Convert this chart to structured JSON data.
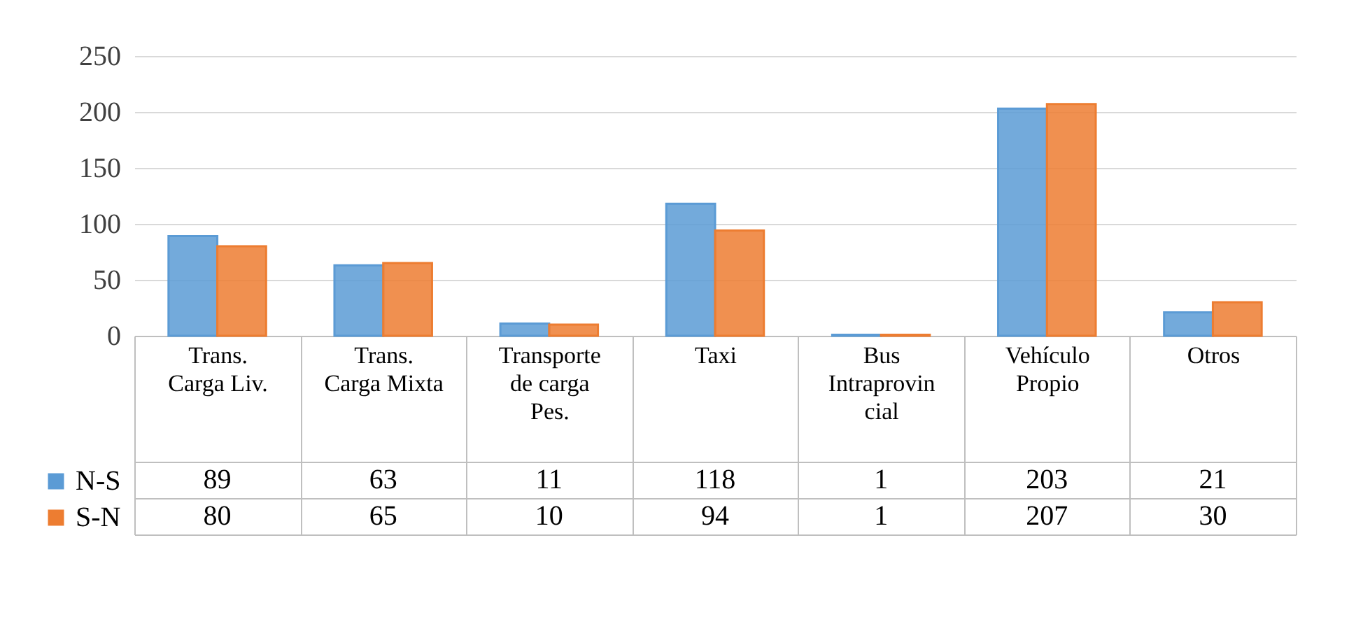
{
  "chart_data": {
    "type": "bar",
    "categories": [
      "Trans. Carga Liv.",
      "Trans. Carga Mixta",
      "Transporte de carga Pes.",
      "Taxi",
      "Bus Intraprovincial",
      "Vehículo Propio",
      "Otros"
    ],
    "series": [
      {
        "name": "N-S",
        "color": "#5b9bd5",
        "values": [
          89,
          63,
          11,
          118,
          1,
          203,
          21
        ]
      },
      {
        "name": "S-N",
        "color": "#ed7d31",
        "values": [
          80,
          65,
          10,
          94,
          1,
          207,
          30
        ]
      }
    ],
    "ylim": [
      0,
      250
    ],
    "yticks": [
      0,
      50,
      100,
      150,
      200,
      250
    ],
    "grid": "y",
    "legend": "bottom left",
    "data_labels": true
  }
}
